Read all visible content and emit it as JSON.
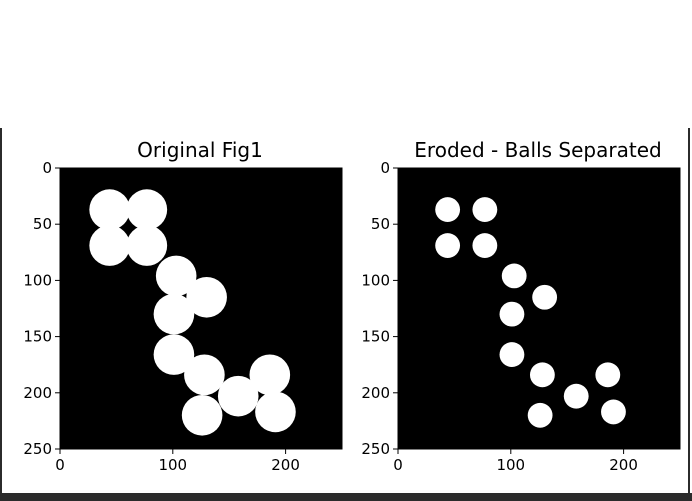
{
  "window": {
    "frame_color": "#2b2b2b",
    "background": "#ffffff"
  },
  "chart_data": [
    {
      "type": "image",
      "title": "Original Fig1",
      "xlim": [
        0,
        250
      ],
      "ylim": [
        250,
        0
      ],
      "xticks": [
        "0",
        "100",
        "200"
      ],
      "yticks": [
        "0",
        "50",
        "100",
        "150",
        "200",
        "250"
      ],
      "xtick_values": [
        0,
        100,
        200
      ],
      "ytick_values": [
        0,
        50,
        100,
        150,
        200,
        250
      ],
      "background_color": "#000000",
      "foreground_color": "#ffffff",
      "balls": [
        {
          "x": 44,
          "y": 37,
          "r": 18
        },
        {
          "x": 77,
          "y": 37,
          "r": 18
        },
        {
          "x": 44,
          "y": 69,
          "r": 18
        },
        {
          "x": 77,
          "y": 69,
          "r": 18
        },
        {
          "x": 103,
          "y": 96,
          "r": 18
        },
        {
          "x": 130,
          "y": 115,
          "r": 18
        },
        {
          "x": 101,
          "y": 130,
          "r": 18
        },
        {
          "x": 101,
          "y": 166,
          "r": 18
        },
        {
          "x": 128,
          "y": 184,
          "r": 18
        },
        {
          "x": 158,
          "y": 203,
          "r": 18
        },
        {
          "x": 186,
          "y": 184,
          "r": 18
        },
        {
          "x": 126,
          "y": 220,
          "r": 18
        },
        {
          "x": 191,
          "y": 217,
          "r": 18
        }
      ]
    },
    {
      "type": "image",
      "title": "Eroded - Balls Separated",
      "xlim": [
        0,
        250
      ],
      "ylim": [
        250,
        0
      ],
      "xticks": [
        "0",
        "100",
        "200"
      ],
      "yticks": [
        "0",
        "50",
        "100",
        "150",
        "200",
        "250"
      ],
      "xtick_values": [
        0,
        100,
        200
      ],
      "ytick_values": [
        0,
        50,
        100,
        150,
        200,
        250
      ],
      "background_color": "#000000",
      "foreground_color": "#ffffff",
      "balls": [
        {
          "x": 44,
          "y": 37,
          "r": 11
        },
        {
          "x": 77,
          "y": 37,
          "r": 11
        },
        {
          "x": 44,
          "y": 69,
          "r": 11
        },
        {
          "x": 77,
          "y": 69,
          "r": 11
        },
        {
          "x": 103,
          "y": 96,
          "r": 11
        },
        {
          "x": 130,
          "y": 115,
          "r": 11
        },
        {
          "x": 101,
          "y": 130,
          "r": 11
        },
        {
          "x": 101,
          "y": 166,
          "r": 11
        },
        {
          "x": 128,
          "y": 184,
          "r": 11
        },
        {
          "x": 158,
          "y": 203,
          "r": 11
        },
        {
          "x": 186,
          "y": 184,
          "r": 11
        },
        {
          "x": 126,
          "y": 220,
          "r": 11
        },
        {
          "x": 191,
          "y": 217,
          "r": 11
        }
      ]
    }
  ]
}
